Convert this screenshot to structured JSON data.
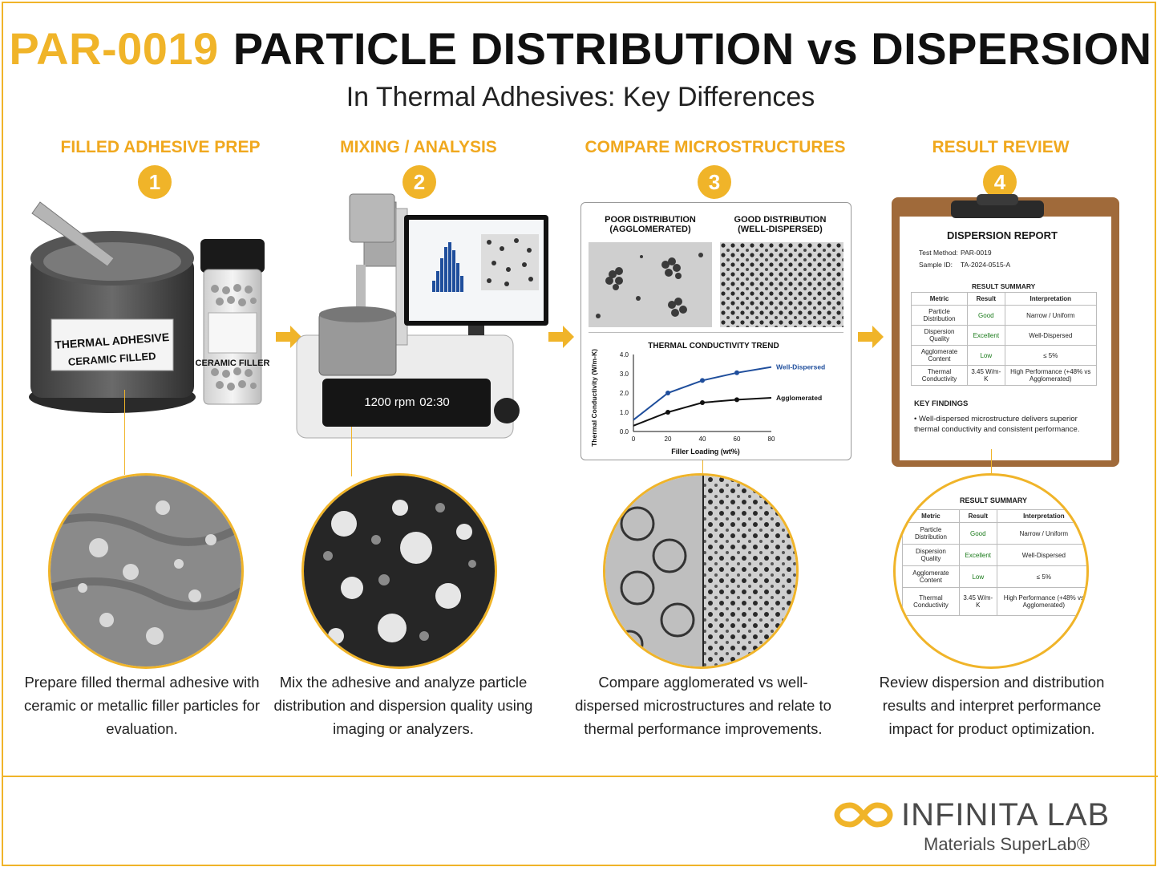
{
  "header": {
    "code": "PAR-0019",
    "title": "PARTICLE DISTRIBUTION vs DISPERSION",
    "subtitle": "In Thermal Adhesives: Key Differences"
  },
  "steps": [
    {
      "number": "1",
      "title": "FILLED ADHESIVE PREP",
      "desc": "Prepare filled thermal adhesive with ceramic or metallic filler particles for evaluation."
    },
    {
      "number": "2",
      "title": "MIXING / ANALYSIS",
      "desc": "Mix the adhesive and analyze particle distribution and dispersion quality using imaging or analyzers."
    },
    {
      "number": "3",
      "title": "COMPARE MICROSTRUCTURES",
      "desc": "Compare agglomerated vs well-dispersed microstructures and relate to thermal performance improvements."
    },
    {
      "number": "4",
      "title": "RESULT REVIEW",
      "desc": "Review dispersion and distribution results and interpret performance impact for product optimization."
    }
  ],
  "jar": {
    "label1": "THERMAL ADHESIVE",
    "label2": "CERAMIC FILLED",
    "vial": "CERAMIC FILLER"
  },
  "mixer": {
    "rpm": "1200 rpm",
    "time": "02:30"
  },
  "comparison": {
    "poor": "POOR DISTRIBUTION (AGGLOMERATED)",
    "good": "GOOD DISTRIBUTION (WELL-DISPERSED)"
  },
  "chart_data": {
    "type": "line",
    "title": "THERMAL CONDUCTIVITY TREND",
    "xlabel": "Filler Loading (wt%)",
    "ylabel": "Thermal Conductivity (W/m-K)",
    "xlim": [
      0,
      80
    ],
    "ylim": [
      0,
      4.0
    ],
    "xticks": [
      "0",
      "20",
      "40",
      "60",
      "80"
    ],
    "yticks": [
      "0.0",
      "1.0",
      "2.0",
      "3.0",
      "4.0"
    ],
    "series": [
      {
        "name": "Well-Dispersed",
        "color": "#1f4e9c",
        "x": [
          0,
          20,
          40,
          60,
          80
        ],
        "y": [
          0.6,
          2.0,
          2.65,
          3.05,
          3.35
        ]
      },
      {
        "name": "Agglomerated",
        "color": "#111111",
        "x": [
          0,
          20,
          40,
          60,
          80
        ],
        "y": [
          0.3,
          1.0,
          1.5,
          1.65,
          1.75
        ]
      }
    ]
  },
  "report": {
    "title": "DISPERSION REPORT",
    "method_label": "Test Method:",
    "method": "PAR-0019",
    "sample_label": "Sample ID:",
    "sample": "TA-2024-0515-A",
    "summary_title": "RESULT SUMMARY",
    "headers": [
      "Metric",
      "Result",
      "Interpretation"
    ],
    "rows": [
      [
        "Particle Distribution",
        "Good",
        "Narrow / Uniform"
      ],
      [
        "Dispersion Quality",
        "Excellent",
        "Well-Dispersed"
      ],
      [
        "Agglomerate Content",
        "Low",
        "≤ 5%"
      ],
      [
        "Thermal Conductivity",
        "3.45 W/m-K",
        "High Performance (+48% vs Agglomerated)"
      ]
    ],
    "findings_title": "KEY FINDINGS",
    "finding": "Well-dispersed microstructure delivers superior thermal conductivity and consistent performance."
  },
  "zoom": {
    "summary_title": "RESULT SUMMARY",
    "rows": [
      [
        "Particle Distribution",
        "Good",
        "Narrow / Uniform"
      ],
      [
        "Dispersion Quality",
        "Excellent",
        "Well-Dispersed"
      ],
      [
        "Agglomerate Content",
        "Low",
        "≤ 5%"
      ],
      [
        "Thermal Conductivity",
        "3.45 W/m-K",
        "High Performance (+48% vs Agglomerated)"
      ]
    ]
  },
  "logo": {
    "name": "INFINITA LAB",
    "tagline": "Materials SuperLab®",
    "accent": "#f0b429"
  }
}
